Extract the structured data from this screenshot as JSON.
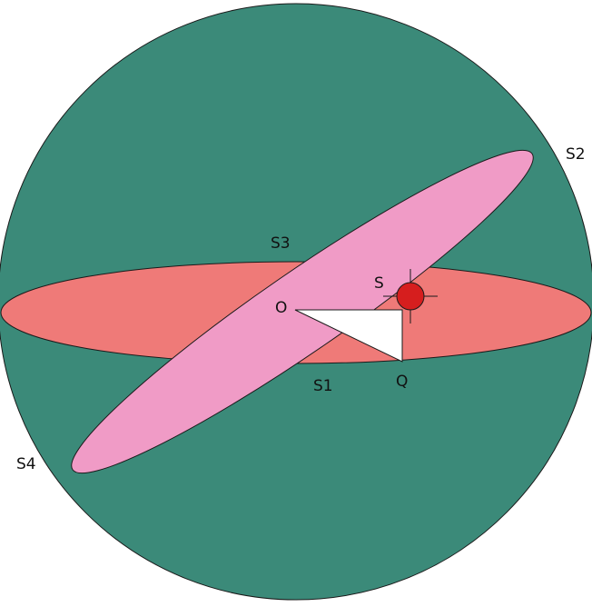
{
  "colors": {
    "background": "#ffffff",
    "sphere": "#3b8a79",
    "equator_plane": "#ef7a78",
    "tilted_plane": "#f09bc6",
    "triangle": "#ffffff",
    "star": "#d61e1e",
    "outline": "#1a1a1a"
  },
  "labels": {
    "s1": "S1",
    "s2": "S2",
    "s3": "S3",
    "s4": "S4",
    "o": "O",
    "q": "Q",
    "s": "S"
  }
}
